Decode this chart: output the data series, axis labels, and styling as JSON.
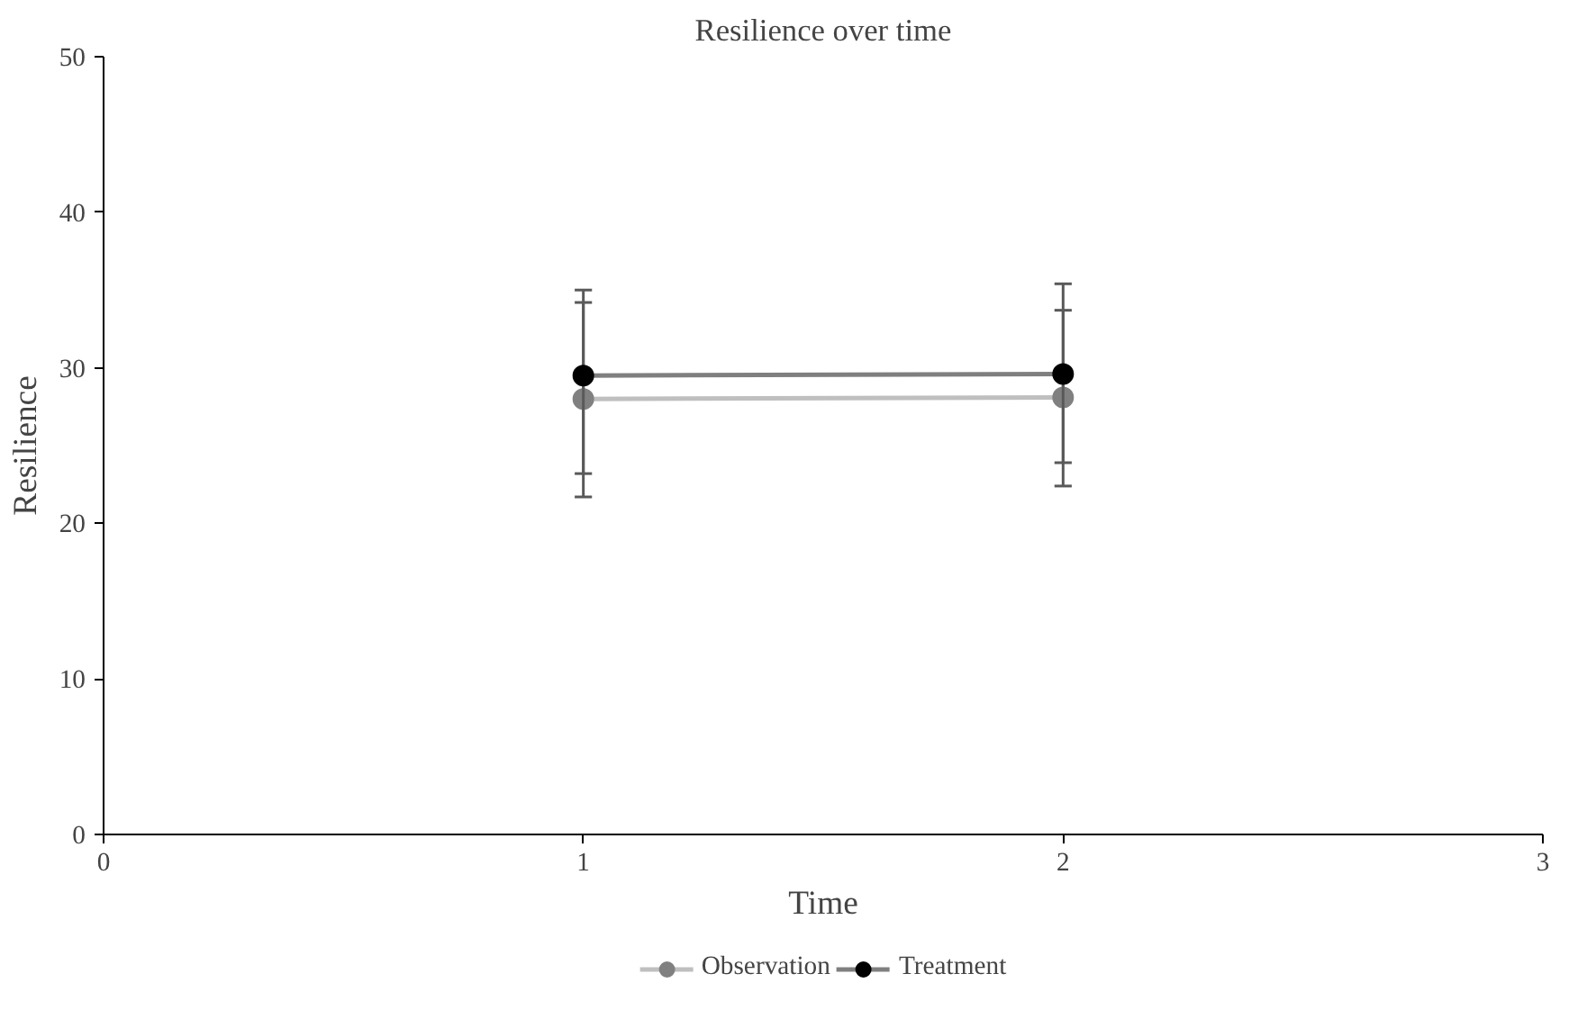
{
  "chart_data": {
    "type": "line",
    "title": "Resilience over time",
    "xlabel": "Time",
    "ylabel": "Resilience",
    "x": [
      1,
      2
    ],
    "xlim": [
      0,
      3
    ],
    "xticks": [
      0,
      1,
      2,
      3
    ],
    "ylim": [
      0,
      50
    ],
    "yticks": [
      0,
      10,
      20,
      30,
      40,
      50
    ],
    "series": [
      {
        "name": "Observation",
        "color": "#808080",
        "values": [
          28,
          28.1
        ],
        "errors": [
          [
            21.7,
            34.2
          ],
          [
            22.4,
            33.7
          ]
        ]
      },
      {
        "name": "Treatment",
        "color": "#000000",
        "values": [
          29.5,
          29.6
        ],
        "errors": [
          [
            23.2,
            35.0
          ],
          [
            23.9,
            35.4
          ]
        ]
      }
    ],
    "marker": "circle",
    "line_style": "solid",
    "grid": false,
    "legend": "bottom"
  }
}
